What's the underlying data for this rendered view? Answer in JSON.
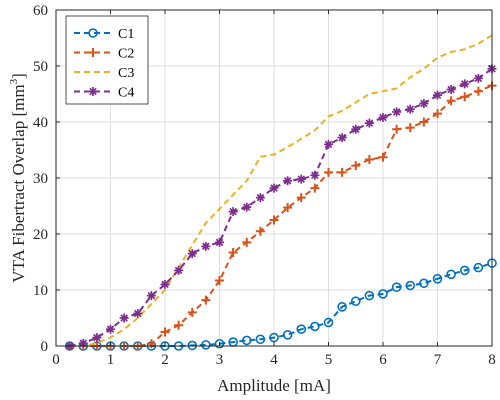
{
  "chart_data": {
    "type": "line",
    "xlabel": "Amplitude [mA]",
    "ylabel": "VTA Fibertract Overlap [mm",
    "ylabel_sup": "3",
    "ylabel_close": "]",
    "xlim": [
      0,
      8
    ],
    "ylim": [
      0,
      60
    ],
    "xticks": [
      0,
      1,
      2,
      3,
      4,
      5,
      6,
      7,
      8
    ],
    "yticks": [
      0,
      10,
      20,
      30,
      40,
      50,
      60
    ],
    "grid": true,
    "legend_position": "top-left",
    "x": [
      0.25,
      0.5,
      0.75,
      1.0,
      1.25,
      1.5,
      1.75,
      2.0,
      2.25,
      2.5,
      2.75,
      3.0,
      3.25,
      3.5,
      3.75,
      4.0,
      4.25,
      4.5,
      4.75,
      5.0,
      5.25,
      5.5,
      5.75,
      6.0,
      6.25,
      6.5,
      6.75,
      7.0,
      7.25,
      7.5,
      7.75,
      8.0
    ],
    "series": [
      {
        "name": "C1",
        "color": "#0072BD",
        "marker": "circle",
        "linestyle": "dashed",
        "values": [
          0,
          0,
          0,
          0,
          0,
          0,
          0,
          0,
          0,
          0.1,
          0.2,
          0.4,
          0.7,
          1.0,
          1.2,
          1.5,
          2.0,
          3.0,
          3.5,
          4.2,
          7.0,
          8.0,
          9.0,
          9.3,
          10.5,
          10.8,
          11.2,
          12.0,
          12.8,
          13.5,
          14.0,
          14.8
        ]
      },
      {
        "name": "C2",
        "color": "#D95319",
        "marker": "plus",
        "linestyle": "dashed",
        "values": [
          0,
          0,
          0,
          0,
          0,
          0,
          0.4,
          2.5,
          3.7,
          6.0,
          8.2,
          11.7,
          16.7,
          18.5,
          20.5,
          22.5,
          24.7,
          26.5,
          28.2,
          31.0,
          31.0,
          32.2,
          33.3,
          33.7,
          38.7,
          39.0,
          40.0,
          41.5,
          43.8,
          44.5,
          45.5,
          46.5
        ]
      },
      {
        "name": "C3",
        "color": "#EDB120",
        "marker": "none",
        "linestyle": "dashed",
        "values": [
          0,
          0,
          0.5,
          1.5,
          3.0,
          5.0,
          7.5,
          10.0,
          14.0,
          18.0,
          22.0,
          24.5,
          27.0,
          29.5,
          33.8,
          34.2,
          35.5,
          37.0,
          38.5,
          41.0,
          42.0,
          43.5,
          45.0,
          45.5,
          46.0,
          48.0,
          49.5,
          51.5,
          52.5,
          53.0,
          54.0,
          55.5
        ]
      },
      {
        "name": "C4",
        "color": "#7E2F8E",
        "marker": "star",
        "linestyle": "dashed",
        "values": [
          0,
          0.5,
          1.5,
          3.0,
          5.0,
          5.8,
          9.0,
          11.0,
          13.5,
          16.5,
          17.8,
          18.5,
          24.0,
          24.8,
          26.5,
          28.2,
          29.5,
          29.8,
          30.5,
          36.0,
          37.2,
          38.7,
          39.8,
          40.8,
          41.8,
          42.3,
          43.3,
          44.8,
          45.8,
          46.8,
          47.8,
          49.5
        ]
      }
    ]
  }
}
